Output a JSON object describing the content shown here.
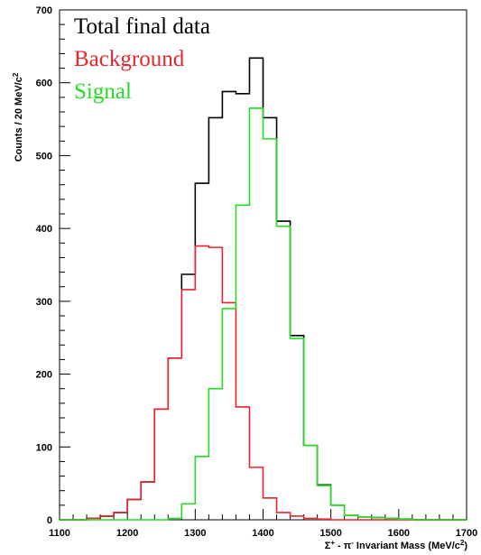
{
  "chart_data": {
    "type": "histogram",
    "title": "",
    "xlabel": {
      "prefix": "Σ",
      "prefix_sup": "+",
      "mid": " - π",
      "mid_sup": "-",
      "text": " Invariant Mass (MeV/c",
      "unit_sup": "2",
      "close": ")"
    },
    "ylabel": {
      "text": "Counts / 20 MeV/c",
      "unit_sup": "2"
    },
    "xlim": [
      1100,
      1700
    ],
    "ylim": [
      0,
      700
    ],
    "x_ticks": [
      1100,
      1200,
      1300,
      1400,
      1500,
      1600,
      1700
    ],
    "y_ticks": [
      0,
      100,
      200,
      300,
      400,
      500,
      600,
      700
    ],
    "bin_edges": [
      1100,
      1120,
      1140,
      1160,
      1180,
      1200,
      1220,
      1240,
      1260,
      1280,
      1300,
      1320,
      1340,
      1360,
      1380,
      1400,
      1420,
      1440,
      1460,
      1480,
      1500,
      1520,
      1540,
      1560,
      1580,
      1600,
      1620,
      1640,
      1660,
      1680,
      1700
    ],
    "legend_position": "top-left",
    "series": [
      {
        "name": "Total final data",
        "color": "#000000",
        "values": [
          0,
          0,
          2,
          5,
          10,
          28,
          52,
          152,
          222,
          337,
          462,
          552,
          588,
          585,
          634,
          552,
          410,
          253,
          102,
          48,
          20,
          6,
          4,
          3,
          2,
          1,
          0,
          0,
          0,
          0
        ]
      },
      {
        "name": "Background",
        "color": "#e8262b",
        "values": [
          0,
          0,
          2,
          5,
          10,
          28,
          52,
          152,
          222,
          316,
          376,
          374,
          298,
          155,
          72,
          30,
          10,
          5,
          2,
          1,
          0,
          0,
          0,
          0,
          0,
          0,
          0,
          0,
          0,
          0
        ]
      },
      {
        "name": "Signal",
        "color": "#22dd22",
        "values": [
          0,
          0,
          0,
          0,
          0,
          0,
          0,
          0,
          2,
          22,
          87,
          180,
          290,
          432,
          565,
          523,
          403,
          249,
          102,
          47,
          20,
          6,
          4,
          3,
          2,
          1,
          0,
          0,
          0,
          0
        ]
      }
    ]
  }
}
